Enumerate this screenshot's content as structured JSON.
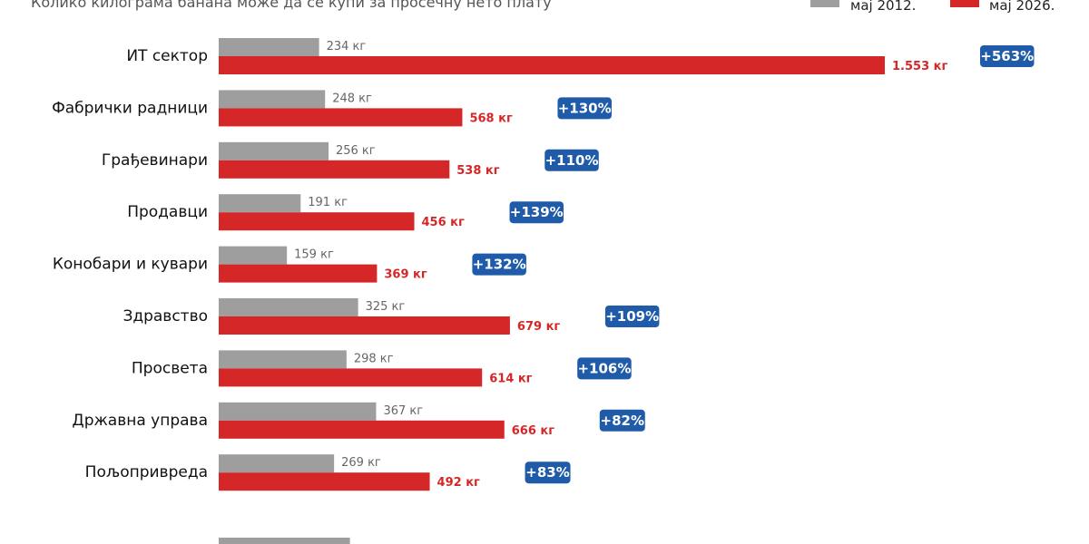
{
  "subtitle": "Колико килограма банана може да се купи за просечну нето плату",
  "colors": {
    "series_a": "#9e9e9e",
    "series_b": "#d62728",
    "badge": "#1f5ba8"
  },
  "chart_data": {
    "type": "bar",
    "orientation": "horizontal",
    "title": "",
    "subtitle": "Колико килограма банана може да се купи за просечну нето плату",
    "legend_position": "top-right",
    "grid": false,
    "xlim": [
      0,
      1600
    ],
    "categories": [
      "ИТ сектор",
      "Фабрички радници",
      "Грађевинари",
      "Продавци",
      "Конобари и кувари",
      "Здравство",
      "Просвета",
      "Државна управа",
      "Пољопривреда"
    ],
    "series": [
      {
        "name": "мај 2012.",
        "values": [
          234,
          248,
          256,
          191,
          159,
          325,
          298,
          367,
          269
        ],
        "labels": [
          "234 кг",
          "248 кг",
          "256 кг",
          "191 кг",
          "159 кг",
          "325 кг",
          "298 кг",
          "367 кг",
          "269 кг"
        ]
      },
      {
        "name": "мај 2026.",
        "values": [
          1553,
          568,
          538,
          456,
          369,
          679,
          614,
          666,
          492
        ],
        "labels": [
          "1.553 кг",
          "568 кг",
          "538 кг",
          "456 кг",
          "369 кг",
          "679 кг",
          "614 кг",
          "666 кг",
          "492 кг"
        ]
      }
    ],
    "changes": [
      "+563%",
      "+130%",
      "+110%",
      "+139%",
      "+132%",
      "+109%",
      "+106%",
      "+82%",
      "+83%"
    ],
    "partial_row": {
      "series_a_value": 306
    }
  }
}
